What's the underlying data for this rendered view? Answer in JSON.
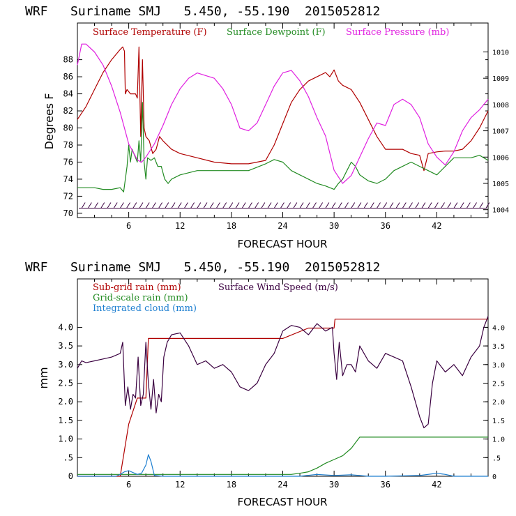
{
  "colors": {
    "temperature": "#b00000",
    "dewpoint": "#228b22",
    "pressure": "#e020e0",
    "subgrid_rain": "#b00000",
    "gridscale_rain": "#228b22",
    "cloud": "#1e7fd0",
    "wind_speed": "#3a0040",
    "axis": "#000000"
  },
  "chart_data": [
    {
      "type": "line",
      "title": "WRF   Suriname SMJ   5.450, -55.190  2015052812",
      "xlabel": "FORECAST HOUR",
      "ylabel": "Degrees F",
      "xlim": [
        0,
        48
      ],
      "ylim": [
        69.5,
        92.3
      ],
      "xticks": [
        "6",
        "12",
        "18",
        "24",
        "30",
        "36",
        "42"
      ],
      "yticks": [
        "70",
        "72",
        "74",
        "76",
        "78",
        "80",
        "82",
        "84",
        "86",
        "88"
      ],
      "y2lim": [
        1003.7,
        1011.1
      ],
      "y2ticks": [
        "1004",
        "1005",
        "1006",
        "1007",
        "1008",
        "1009",
        "1010"
      ],
      "legend": [
        "Surface Temperature (F)",
        "Surface Dewpoint (F)",
        "Surface Pressure (mb)"
      ],
      "series": [
        {
          "name": "Surface Temperature (F)",
          "axis": "left",
          "x": [
            0,
            1,
            2,
            3,
            4,
            5,
            5.3,
            5.5,
            5.6,
            5.8,
            6.2,
            6.8,
            7,
            7.2,
            7.4,
            7.6,
            7.8,
            8,
            8.4,
            8.8,
            9.2,
            9.6,
            10,
            11,
            12,
            14,
            16,
            18,
            20,
            21,
            22,
            23,
            24,
            25,
            26,
            27,
            28,
            29,
            29.5,
            30,
            30.5,
            31,
            32,
            33,
            34,
            35,
            36,
            37,
            38,
            39,
            40,
            40.5,
            41,
            42,
            43,
            44,
            45,
            46,
            47,
            48
          ],
          "values": [
            81,
            82.5,
            84.5,
            86.5,
            88,
            89.2,
            89.5,
            89,
            84,
            84.5,
            84,
            84,
            83.5,
            89.5,
            79,
            88,
            80,
            79,
            78.5,
            77,
            77.5,
            79,
            78.5,
            77.5,
            77,
            76.5,
            76,
            75.8,
            75.8,
            76,
            76.2,
            78,
            80.5,
            83,
            84.5,
            85.5,
            86,
            86.5,
            86,
            86.8,
            85.5,
            85,
            84.5,
            83,
            81,
            79,
            77.5,
            77.5,
            77.5,
            77,
            76.8,
            75,
            77,
            77.2,
            77.3,
            77.3,
            77.5,
            78.5,
            80,
            82
          ]
        },
        {
          "name": "Surface Dewpoint (F)",
          "axis": "left",
          "x": [
            0,
            1,
            2,
            3,
            4,
            5,
            5.4,
            5.8,
            6,
            6.2,
            6.4,
            6.8,
            7,
            7.2,
            7.4,
            7.6,
            7.8,
            8,
            8.2,
            8.6,
            9,
            9.4,
            9.8,
            10.2,
            10.6,
            11,
            12,
            14,
            16,
            18,
            20,
            22,
            23,
            24,
            25,
            26,
            27,
            28,
            29,
            30,
            30.5,
            31,
            31.5,
            32,
            32.5,
            33,
            34,
            35,
            36,
            37,
            38,
            39,
            40,
            41,
            42,
            43,
            44,
            45,
            46,
            47,
            48
          ],
          "values": [
            73,
            73,
            73,
            72.8,
            72.8,
            73,
            72.5,
            75.5,
            78,
            76,
            77.5,
            76.5,
            76,
            78.5,
            76,
            83,
            76,
            74,
            76.5,
            76.2,
            76.5,
            75.5,
            75.5,
            74,
            73.5,
            74,
            74.5,
            75,
            75,
            75,
            75,
            75.8,
            76.3,
            76,
            75,
            74.5,
            74,
            73.5,
            73.2,
            72.8,
            73.5,
            74,
            75,
            76,
            75.5,
            74.5,
            73.8,
            73.5,
            74,
            75,
            75.5,
            76,
            75.5,
            75,
            74.5,
            75.5,
            76.5,
            76.5,
            76.5,
            76.8,
            76.2
          ]
        },
        {
          "name": "Surface Pressure (mb)",
          "axis": "right",
          "x": [
            0,
            0.5,
            1,
            2,
            3,
            4,
            5,
            6,
            6.5,
            7,
            7.5,
            8,
            9,
            10,
            11,
            12,
            13,
            14,
            15,
            16,
            17,
            18,
            19,
            20,
            21,
            22,
            23,
            24,
            25,
            26,
            27,
            28,
            29,
            30,
            31,
            32,
            33,
            34,
            35,
            36,
            37,
            38,
            39,
            40,
            41,
            42,
            43,
            44,
            45,
            46,
            47,
            48
          ],
          "values": [
            1009.5,
            1010.3,
            1010.3,
            1010,
            1009.5,
            1008.7,
            1007.7,
            1006.5,
            1006.2,
            1005.9,
            1005.8,
            1006,
            1006.5,
            1007.2,
            1008,
            1008.6,
            1009,
            1009.2,
            1009.1,
            1009,
            1008.6,
            1008,
            1007.1,
            1007,
            1007.3,
            1008,
            1008.7,
            1009.2,
            1009.3,
            1008.9,
            1008.3,
            1007.5,
            1006.8,
            1005.5,
            1005,
            1005.3,
            1006,
            1006.7,
            1007.3,
            1007.2,
            1008,
            1008.2,
            1008,
            1007.5,
            1006.5,
            1006,
            1005.7,
            1006.2,
            1007,
            1007.5,
            1007.8,
            1008.2
          ]
        }
      ],
      "wind_barbs": {
        "level": 70.6,
        "x_start": 0,
        "x_end": 48,
        "step": 0.75
      }
    },
    {
      "type": "line",
      "title": "WRF   Suriname SMJ   5.450, -55.190  2015052812",
      "xlabel": "FORECAST HOUR",
      "ylabel": "mm",
      "xlim": [
        0,
        48
      ],
      "ylim": [
        0,
        5.3
      ],
      "xticks": [
        "6",
        "12",
        "18",
        "24",
        "30",
        "36",
        "42"
      ],
      "yticks": [
        "0",
        ".5",
        "1.0",
        "1.5",
        "2.0",
        "2.5",
        "3.0",
        "3.5",
        "4.0"
      ],
      "y2lim": [
        0,
        5.3
      ],
      "y2ticks": [
        "0",
        ".5",
        "1.0",
        "1.5",
        "2.0",
        "2.5",
        "3.0",
        "3.5",
        "4.0"
      ],
      "legend": [
        "Sub-grid rain (mm)",
        "Surface Wind Speed (m/s)",
        "Grid-scale rain (mm)",
        "Integrated cloud (mm)"
      ],
      "series": [
        {
          "name": "Sub-grid rain (mm)",
          "axis": "left",
          "x": [
            0,
            5,
            6,
            7,
            7.2,
            8,
            8.3,
            8.8,
            9,
            24,
            27,
            29.5,
            30,
            30.1,
            48
          ],
          "values": [
            0,
            0,
            1.4,
            2.1,
            2.1,
            2.1,
            3.7,
            3.7,
            3.7,
            3.7,
            3.98,
            3.98,
            3.98,
            4.22,
            4.22
          ]
        },
        {
          "name": "Grid-scale rain (mm)",
          "axis": "left",
          "x": [
            0,
            25,
            26,
            27,
            28,
            29,
            30,
            31,
            32,
            32.5,
            33,
            48
          ],
          "values": [
            0.05,
            0.05,
            0.08,
            0.12,
            0.22,
            0.35,
            0.45,
            0.55,
            0.75,
            0.9,
            1.05,
            1.05
          ]
        },
        {
          "name": "Integrated cloud (mm)",
          "axis": "left",
          "x": [
            0,
            4.5,
            5,
            5.5,
            6,
            6.5,
            7,
            7.5,
            8,
            8.3,
            8.6,
            9,
            10,
            26,
            28,
            30,
            32,
            34,
            36,
            40,
            42,
            43,
            44,
            48
          ],
          "values": [
            0,
            0,
            0.05,
            0.12,
            0.15,
            0.1,
            0.05,
            0.08,
            0.3,
            0.58,
            0.4,
            0.02,
            0,
            0,
            0.05,
            0.02,
            0.04,
            0,
            0,
            0.02,
            0.08,
            0.05,
            0,
            0
          ]
        },
        {
          "name": "Surface Wind Speed (m/s)",
          "axis": "right",
          "x": [
            0,
            0.5,
            1,
            2,
            3,
            4,
            5,
            5.3,
            5.6,
            5.9,
            6.2,
            6.5,
            6.8,
            7.1,
            7.4,
            7.7,
            8,
            8.3,
            8.6,
            8.9,
            9.2,
            9.5,
            9.8,
            10.1,
            10.5,
            11,
            12,
            13,
            14,
            15,
            16,
            17,
            18,
            19,
            20,
            21,
            22,
            23,
            24,
            25,
            26,
            27,
            28,
            29,
            29.8,
            30,
            30.3,
            30.6,
            31,
            31.5,
            32,
            32.5,
            33,
            34,
            35,
            36,
            37,
            38,
            39,
            40,
            40.5,
            41,
            41.5,
            42,
            43,
            44,
            45,
            46,
            47,
            47.5,
            48
          ],
          "values": [
            2.9,
            3.1,
            3.05,
            3.1,
            3.15,
            3.2,
            3.3,
            3.6,
            1.9,
            2.4,
            1.8,
            2.2,
            2.1,
            3.2,
            1.9,
            2.2,
            3.6,
            2.5,
            1.8,
            2.6,
            1.7,
            2.2,
            2.0,
            3.2,
            3.6,
            3.8,
            3.85,
            3.5,
            3.0,
            3.1,
            2.9,
            3.0,
            2.8,
            2.4,
            2.3,
            2.5,
            3.0,
            3.3,
            3.9,
            4.05,
            4.0,
            3.8,
            4.1,
            3.9,
            4.0,
            3.3,
            2.6,
            3.6,
            2.7,
            3.0,
            3.0,
            2.8,
            3.5,
            3.1,
            2.9,
            3.3,
            3.2,
            3.1,
            2.4,
            1.6,
            1.3,
            1.4,
            2.5,
            3.1,
            2.8,
            3.0,
            2.7,
            3.2,
            3.5,
            4.0,
            4.3
          ]
        }
      ]
    }
  ]
}
